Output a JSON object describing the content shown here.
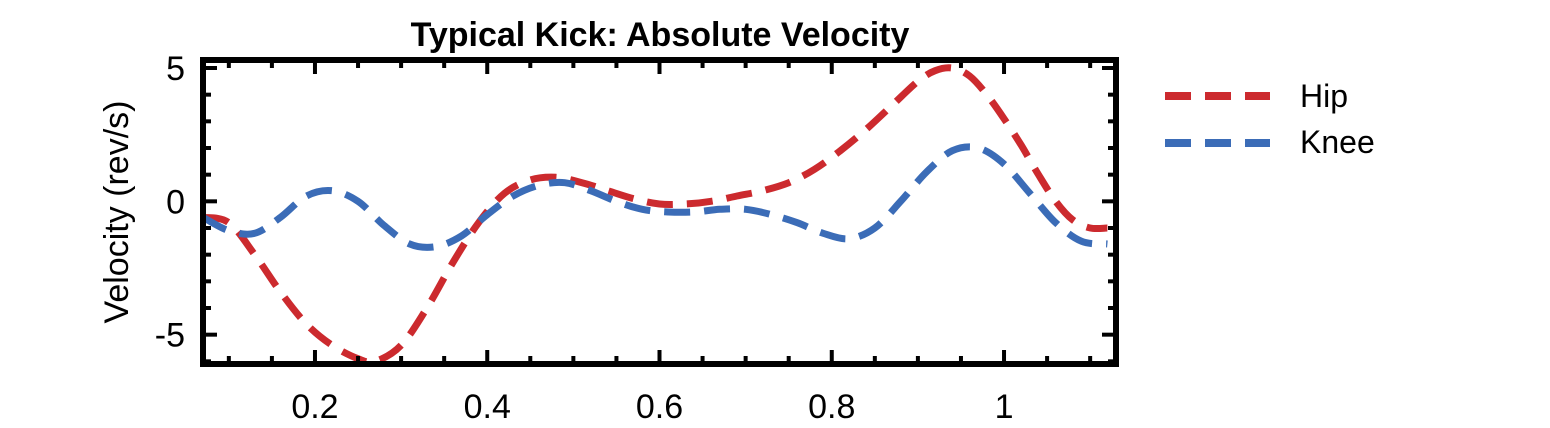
{
  "chart_data": {
    "type": "line",
    "title": "Typical Kick: Absolute Velocity",
    "xlabel": "",
    "ylabel": "Velocity (rev/s)",
    "xlim": [
      0.07,
      1.13
    ],
    "ylim": [
      -6.1,
      5.3
    ],
    "xticks": [
      0.2,
      0.4,
      0.6,
      0.8,
      1
    ],
    "xtick_labels": [
      "0.2",
      "0.4",
      "0.6",
      "0.8",
      "1"
    ],
    "yticks": [
      -5,
      0,
      5
    ],
    "ytick_labels": [
      "-5",
      "0",
      "5"
    ],
    "grid": false,
    "legend_position": "right",
    "series": [
      {
        "name": "Hip",
        "color": "#cc2a2e",
        "x": [
          0.07,
          0.1,
          0.13,
          0.16,
          0.19,
          0.22,
          0.25,
          0.27,
          0.3,
          0.33,
          0.36,
          0.39,
          0.42,
          0.45,
          0.48,
          0.51,
          0.54,
          0.57,
          0.6,
          0.63,
          0.66,
          0.69,
          0.72,
          0.75,
          0.78,
          0.81,
          0.84,
          0.87,
          0.9,
          0.92,
          0.94,
          0.96,
          0.98,
          1.0,
          1.02,
          1.04,
          1.06,
          1.08,
          1.1,
          1.12
        ],
        "y": [
          -0.6,
          -0.8,
          -2.0,
          -3.4,
          -4.6,
          -5.4,
          -5.9,
          -6.0,
          -5.4,
          -4.0,
          -2.3,
          -0.8,
          0.3,
          0.8,
          0.9,
          0.7,
          0.4,
          0.1,
          -0.1,
          -0.1,
          0.0,
          0.2,
          0.4,
          0.7,
          1.2,
          1.9,
          2.7,
          3.6,
          4.5,
          4.9,
          5.0,
          4.7,
          4.0,
          3.1,
          2.1,
          1.0,
          0.0,
          -0.7,
          -1.0,
          -1.0
        ]
      },
      {
        "name": "Knee",
        "color": "#3b6cb7",
        "x": [
          0.07,
          0.1,
          0.13,
          0.16,
          0.19,
          0.22,
          0.25,
          0.28,
          0.31,
          0.34,
          0.37,
          0.4,
          0.43,
          0.46,
          0.49,
          0.52,
          0.55,
          0.58,
          0.61,
          0.64,
          0.67,
          0.7,
          0.73,
          0.76,
          0.79,
          0.82,
          0.85,
          0.88,
          0.91,
          0.94,
          0.97,
          1.0,
          1.03,
          1.06,
          1.09,
          1.12
        ],
        "y": [
          -0.6,
          -1.1,
          -1.2,
          -0.6,
          0.2,
          0.4,
          0.0,
          -0.9,
          -1.6,
          -1.7,
          -1.3,
          -0.5,
          0.2,
          0.6,
          0.7,
          0.4,
          0.0,
          -0.3,
          -0.4,
          -0.4,
          -0.3,
          -0.3,
          -0.5,
          -0.8,
          -1.2,
          -1.4,
          -1.0,
          0.0,
          1.1,
          1.9,
          2.0,
          1.4,
          0.3,
          -0.8,
          -1.5,
          -1.6
        ]
      }
    ]
  }
}
